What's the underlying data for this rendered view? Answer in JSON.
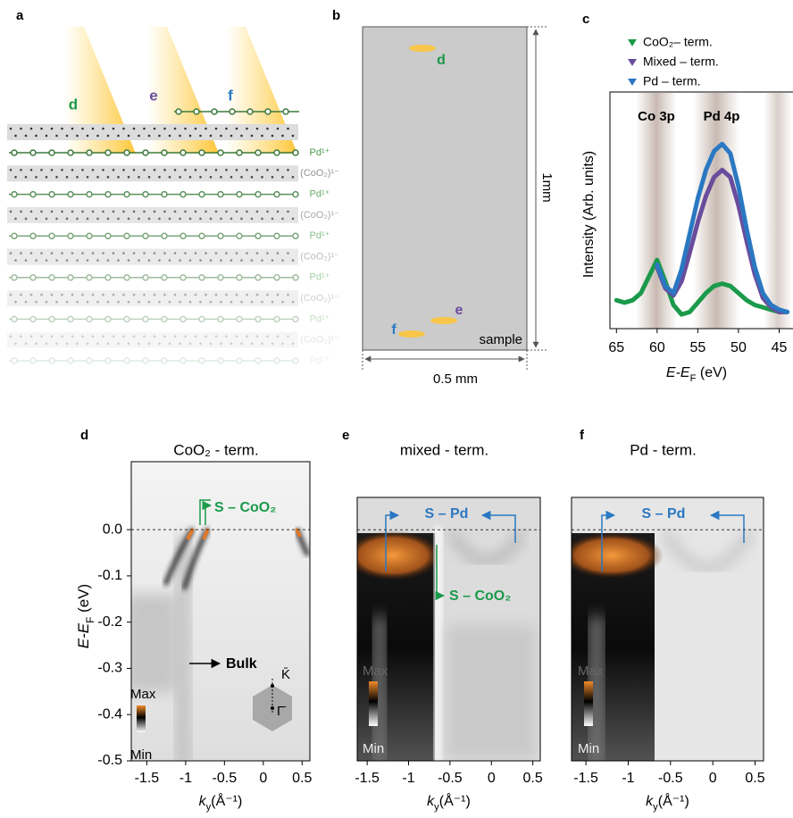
{
  "panel_labels": [
    "a",
    "b",
    "c",
    "d",
    "e",
    "f"
  ],
  "panel_a": {
    "beam_labels": [
      "d",
      "e",
      "f"
    ],
    "layers": [
      "Pd¹⁺",
      "(CoO₂)¹⁻",
      "Pd¹⁺",
      "(CoO₂)¹⁻",
      "Pd¹⁺",
      "(CoO₂)¹⁻",
      "Pd¹⁺",
      "(CoO₂)¹⁻",
      "Pd¹⁺",
      "(CoO₂)¹⁻",
      "Pd¹⁺"
    ]
  },
  "panel_b": {
    "spot_labels": [
      "d",
      "e",
      "f"
    ],
    "height_label": "1mm",
    "width_label": "0.5 mm",
    "sample_label": "sample"
  },
  "chart_data": [
    {
      "type": "line",
      "ylabel": "Intensity (Arb. units)",
      "xlabel": [
        "E-E",
        "F",
        " (eV)"
      ],
      "annotations": [
        "Co 3p",
        "Pd 4p"
      ],
      "x": [
        65,
        64,
        63,
        62,
        61,
        60,
        59,
        58,
        57,
        56,
        55,
        54,
        53,
        52,
        51,
        50,
        49,
        48,
        47,
        46,
        45,
        44
      ],
      "xlim": [
        65.8,
        43.3
      ],
      "xticks": [
        65,
        60,
        55,
        50,
        45
      ],
      "ylim": [
        0,
        1
      ],
      "series": [
        {
          "name": "CoO₂– term.",
          "color": "#1a9a4a",
          "values": [
            0.12,
            0.11,
            0.12,
            0.15,
            0.22,
            0.29,
            0.2,
            0.1,
            0.06,
            0.07,
            0.11,
            0.15,
            0.18,
            0.19,
            0.18,
            0.15,
            0.12,
            0.1,
            0.09,
            0.08,
            0.07,
            0.07
          ]
        },
        {
          "name": "Mixed – term.",
          "color": "#6a4c9c",
          "values": [
            null,
            null,
            null,
            null,
            null,
            0.26,
            0.17,
            0.14,
            0.2,
            0.32,
            0.45,
            0.56,
            0.64,
            0.67,
            0.64,
            0.52,
            0.37,
            0.23,
            0.13,
            0.09,
            0.07,
            0.07
          ]
        },
        {
          "name": "Pd – term.",
          "color": "#2a78c2",
          "values": [
            null,
            null,
            null,
            null,
            null,
            0.27,
            0.18,
            0.15,
            0.25,
            0.4,
            0.55,
            0.67,
            0.75,
            0.78,
            0.74,
            0.6,
            0.42,
            0.26,
            0.15,
            0.1,
            0.08,
            0.07
          ]
        }
      ]
    },
    {
      "type": "image",
      "title": "CoO₂ - term.",
      "xlim": [
        -1.7,
        0.6
      ],
      "xticks": [
        -1.5,
        -1,
        -0.5,
        0,
        0.5
      ],
      "ylim": [
        -0.5,
        0.147
      ],
      "yticks": [
        {
          "value": 0,
          "label": "0.0"
        },
        -0.1,
        -0.2,
        -0.3,
        -0.4,
        -0.5
      ],
      "ylabel": [
        "E-E",
        "F",
        " (eV)"
      ],
      "xlabel": [
        "k",
        "y",
        "(Å⁻¹)"
      ],
      "colorbar": [
        "Max",
        "Min"
      ],
      "annotations": [
        "S – CoO₂",
        "Bulk"
      ],
      "bz_labels": [
        "K̄",
        "Γ̄"
      ]
    },
    {
      "type": "image",
      "title": "mixed - term.",
      "xlim": [
        -1.62,
        0.59
      ],
      "xticks": [
        -1.5,
        -1,
        -0.5,
        0,
        0.5
      ],
      "ylim": [
        -0.5,
        0.07
      ],
      "xlabel": [
        "k",
        "y",
        "(Å⁻¹)"
      ],
      "colorbar": [
        "Max",
        "Min"
      ],
      "annotations": [
        "S – Pd",
        "S – CoO₂"
      ]
    },
    {
      "type": "image",
      "title": "Pd - term.",
      "xlim": [
        -1.67,
        0.6
      ],
      "xticks": [
        -1.5,
        -1,
        -0.5,
        0,
        0.5
      ],
      "ylim": [
        -0.5,
        0.07
      ],
      "xlabel": [
        "k",
        "y",
        "(Å⁻¹)"
      ],
      "colorbar": [
        "Max",
        "Min"
      ],
      "annotations": [
        "S – Pd"
      ]
    }
  ]
}
